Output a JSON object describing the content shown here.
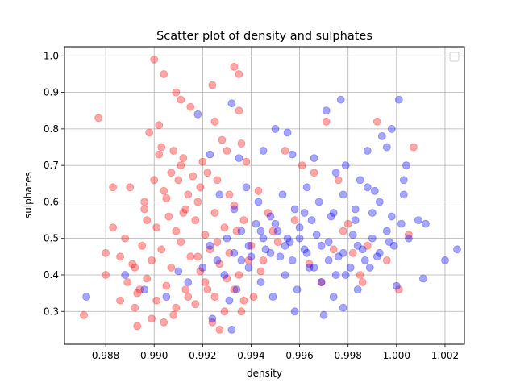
{
  "chart_data": {
    "type": "scatter",
    "title": "Scatter plot of density and sulphates",
    "xlabel": "density",
    "ylabel": "sulphates",
    "xlim": [
      0.9863,
      1.0028
    ],
    "ylim": [
      0.21,
      1.025
    ],
    "x_ticks": [
      "0.988",
      "0.990",
      "0.992",
      "0.994",
      "0.996",
      "0.998",
      "1.000",
      "1.002"
    ],
    "y_ticks": [
      "0.3",
      "0.4",
      "0.5",
      "0.6",
      "0.7",
      "0.8",
      "0.9",
      "1.0"
    ],
    "grid": true,
    "legend": {
      "placement": "top-right",
      "entries": []
    },
    "series": [
      {
        "color": "#ff0000",
        "opacity": 0.35,
        "points": [
          [
            0.9892,
            0.42
          ],
          [
            0.9894,
            0.36
          ],
          [
            0.99,
            0.99
          ],
          [
            0.9904,
            0.95
          ],
          [
            0.9909,
            0.9
          ],
          [
            0.9911,
            0.88
          ],
          [
            0.9915,
            0.86
          ],
          [
            0.9877,
            0.83
          ],
          [
            0.9898,
            0.79
          ],
          [
            0.9902,
            0.81
          ],
          [
            0.9903,
            0.75
          ],
          [
            0.9908,
            0.74
          ],
          [
            0.9912,
            0.72
          ],
          [
            0.9924,
            0.92
          ],
          [
            0.9933,
            0.97
          ],
          [
            0.9935,
            0.95
          ],
          [
            0.9935,
            0.85
          ],
          [
            0.9925,
            0.82
          ],
          [
            0.9928,
            0.77
          ],
          [
            0.9936,
            0.76
          ],
          [
            0.9883,
            0.64
          ],
          [
            0.989,
            0.64
          ],
          [
            0.9896,
            0.6
          ],
          [
            0.99,
            0.66
          ],
          [
            0.9904,
            0.63
          ],
          [
            0.9907,
            0.68
          ],
          [
            0.9911,
            0.7
          ],
          [
            0.9914,
            0.62
          ],
          [
            0.9918,
            0.6
          ],
          [
            0.9922,
            0.68
          ],
          [
            0.9926,
            0.66
          ],
          [
            0.9931,
            0.62
          ],
          [
            0.9897,
            0.55
          ],
          [
            0.9901,
            0.53
          ],
          [
            0.9906,
            0.56
          ],
          [
            0.9909,
            0.52
          ],
          [
            0.9913,
            0.58
          ],
          [
            0.9917,
            0.55
          ],
          [
            0.9921,
            0.51
          ],
          [
            0.9925,
            0.57
          ],
          [
            0.9929,
            0.53
          ],
          [
            0.9933,
            0.59
          ],
          [
            0.9937,
            0.55
          ],
          [
            0.988,
            0.46
          ],
          [
            0.9886,
            0.45
          ],
          [
            0.9891,
            0.43
          ],
          [
            0.9895,
            0.48
          ],
          [
            0.9899,
            0.44
          ],
          [
            0.9903,
            0.47
          ],
          [
            0.9907,
            0.42
          ],
          [
            0.9911,
            0.49
          ],
          [
            0.9915,
            0.45
          ],
          [
            0.9919,
            0.41
          ],
          [
            0.9923,
            0.47
          ],
          [
            0.9927,
            0.43
          ],
          [
            0.9931,
            0.46
          ],
          [
            0.9935,
            0.4
          ],
          [
            0.9939,
            0.44
          ],
          [
            0.9889,
            0.38
          ],
          [
            0.9893,
            0.35
          ],
          [
            0.9897,
            0.39
          ],
          [
            0.9901,
            0.33
          ],
          [
            0.9905,
            0.37
          ],
          [
            0.9909,
            0.31
          ],
          [
            0.9913,
            0.36
          ],
          [
            0.9917,
            0.32
          ],
          [
            0.9921,
            0.38
          ],
          [
            0.9925,
            0.34
          ],
          [
            0.9929,
            0.3
          ],
          [
            0.9933,
            0.36
          ],
          [
            0.9937,
            0.33
          ],
          [
            0.9871,
            0.29
          ],
          [
            0.9893,
            0.26
          ],
          [
            0.9899,
            0.28
          ],
          [
            0.9904,
            0.27
          ],
          [
            0.9924,
            0.27
          ],
          [
            0.9927,
            0.25
          ],
          [
            0.9941,
            0.34
          ],
          [
            0.9945,
            0.44
          ],
          [
            0.9949,
            0.52
          ],
          [
            0.9954,
            0.74
          ],
          [
            0.9961,
            0.7
          ],
          [
            0.9966,
            0.68
          ],
          [
            0.9971,
            0.82
          ],
          [
            0.9976,
            0.66
          ],
          [
            0.9978,
            0.52
          ],
          [
            0.9982,
            0.46
          ],
          [
            0.9985,
            0.4
          ],
          [
            0.9988,
            0.48
          ],
          [
            0.9992,
            0.82
          ],
          [
            0.9996,
            0.44
          ],
          [
            1.0001,
            0.36
          ],
          [
            1.0005,
            0.51
          ],
          [
            1.0007,
            0.75
          ],
          [
            0.9883,
            0.53
          ],
          [
            0.9888,
            0.5
          ],
          [
            0.9896,
            0.58
          ],
          [
            0.9905,
            0.61
          ],
          [
            0.9912,
            0.57
          ],
          [
            0.9919,
            0.64
          ],
          [
            0.9902,
            0.73
          ],
          [
            0.991,
            0.66
          ],
          [
            0.9916,
            0.67
          ],
          [
            0.992,
            0.71
          ],
          [
            0.993,
            0.74
          ],
          [
            0.9938,
            0.71
          ],
          [
            0.9943,
            0.63
          ],
          [
            0.9947,
            0.57
          ],
          [
            0.9951,
            0.49
          ],
          [
            0.9958,
            0.55
          ],
          [
            0.9964,
            0.43
          ],
          [
            0.9969,
            0.38
          ],
          [
            0.9974,
            0.47
          ],
          [
            0.998,
            0.54
          ],
          [
            0.9986,
            0.38
          ],
          [
            0.988,
            0.4
          ],
          [
            0.9886,
            0.33
          ],
          [
            0.9892,
            0.31
          ],
          [
            0.9908,
            0.29
          ],
          [
            0.9914,
            0.34
          ],
          [
            0.9922,
            0.36
          ],
          [
            0.993,
            0.39
          ],
          [
            0.9936,
            0.3
          ],
          [
            0.9918,
            0.45
          ],
          [
            0.9926,
            0.49
          ],
          [
            0.9934,
            0.52
          ],
          [
            0.994,
            0.48
          ],
          [
            0.9944,
            0.41
          ]
        ]
      },
      {
        "color": "#0000ff",
        "opacity": 0.35,
        "points": [
          [
            0.9872,
            0.34
          ],
          [
            0.9888,
            0.4
          ],
          [
            0.9896,
            0.36
          ],
          [
            0.9905,
            0.34
          ],
          [
            0.991,
            0.41
          ],
          [
            0.9914,
            0.38
          ],
          [
            0.992,
            0.42
          ],
          [
            0.9923,
            0.48
          ],
          [
            0.9926,
            0.44
          ],
          [
            0.993,
            0.5
          ],
          [
            0.9933,
            0.46
          ],
          [
            0.9936,
            0.52
          ],
          [
            0.9939,
            0.48
          ],
          [
            0.9942,
            0.54
          ],
          [
            0.9945,
            0.5
          ],
          [
            0.9948,
            0.46
          ],
          [
            0.9951,
            0.52
          ],
          [
            0.9954,
            0.48
          ],
          [
            0.9957,
            0.44
          ],
          [
            0.996,
            0.5
          ],
          [
            0.9963,
            0.46
          ],
          [
            0.9966,
            0.42
          ],
          [
            0.9969,
            0.48
          ],
          [
            0.9972,
            0.44
          ],
          [
            0.9975,
            0.4
          ],
          [
            0.9978,
            0.46
          ],
          [
            0.9981,
            0.42
          ],
          [
            0.9984,
            0.48
          ],
          [
            0.9987,
            0.44
          ],
          [
            0.999,
            0.5
          ],
          [
            0.9993,
            0.46
          ],
          [
            0.9996,
            0.52
          ],
          [
            0.9999,
            0.48
          ],
          [
            1.0002,
            0.54
          ],
          [
            1.0005,
            0.5
          ],
          [
            1.0009,
            0.55
          ],
          [
            1.0012,
            0.54
          ],
          [
            1.002,
            0.44
          ],
          [
            1.0025,
            0.47
          ],
          [
            1.0011,
            0.39
          ],
          [
            1.0001,
            0.88
          ],
          [
            0.9996,
            0.75
          ],
          [
            0.9991,
            0.63
          ],
          [
            0.9998,
            0.8
          ],
          [
            0.9977,
            0.88
          ],
          [
            0.9971,
            0.85
          ],
          [
            0.9955,
            0.79
          ],
          [
            0.995,
            0.8
          ],
          [
            0.9932,
            0.87
          ],
          [
            0.9918,
            0.84
          ],
          [
            0.9923,
            0.73
          ],
          [
            0.9935,
            0.72
          ],
          [
            0.9945,
            0.74
          ],
          [
            0.9957,
            0.73
          ],
          [
            0.9966,
            0.72
          ],
          [
            0.9979,
            0.7
          ],
          [
            0.9988,
            0.74
          ],
          [
            0.9994,
            0.78
          ],
          [
            1.0004,
            0.7
          ],
          [
            1.0003,
            0.66
          ],
          [
            0.9927,
            0.62
          ],
          [
            0.9933,
            0.58
          ],
          [
            0.9938,
            0.64
          ],
          [
            0.9943,
            0.6
          ],
          [
            0.9948,
            0.56
          ],
          [
            0.9953,
            0.62
          ],
          [
            0.9958,
            0.58
          ],
          [
            0.9963,
            0.64
          ],
          [
            0.9968,
            0.6
          ],
          [
            0.9973,
            0.56
          ],
          [
            0.9978,
            0.62
          ],
          [
            0.9983,
            0.58
          ],
          [
            0.9988,
            0.64
          ],
          [
            0.9993,
            0.6
          ],
          [
            0.9998,
            0.56
          ],
          [
            1.0003,
            0.62
          ],
          [
            0.9929,
            0.4
          ],
          [
            0.9934,
            0.36
          ],
          [
            0.9939,
            0.42
          ],
          [
            0.9944,
            0.38
          ],
          [
            0.9949,
            0.34
          ],
          [
            0.9954,
            0.4
          ],
          [
            0.9959,
            0.36
          ],
          [
            0.9964,
            0.42
          ],
          [
            0.9969,
            0.38
          ],
          [
            0.9974,
            0.34
          ],
          [
            0.9979,
            0.4
          ],
          [
            0.9984,
            0.36
          ],
          [
            0.9989,
            0.42
          ],
          [
            1.0,
            0.37
          ],
          [
            0.9958,
            0.3
          ],
          [
            0.997,
            0.29
          ],
          [
            0.9978,
            0.31
          ],
          [
            0.9931,
            0.33
          ],
          [
            0.9924,
            0.28
          ],
          [
            0.9932,
            0.25
          ],
          [
            0.9946,
            0.47
          ],
          [
            0.9952,
            0.45
          ],
          [
            0.9956,
            0.49
          ],
          [
            0.9962,
            0.47
          ],
          [
            0.9967,
            0.51
          ],
          [
            0.9972,
            0.49
          ],
          [
            0.9976,
            0.45
          ],
          [
            0.9982,
            0.51
          ],
          [
            0.9986,
            0.47
          ],
          [
            0.9992,
            0.45
          ],
          [
            0.9997,
            0.49
          ],
          [
            0.9944,
            0.52
          ],
          [
            0.995,
            0.54
          ],
          [
            0.9955,
            0.5
          ],
          [
            0.996,
            0.53
          ],
          [
            0.9965,
            0.55
          ],
          [
            0.994,
            0.45
          ],
          [
            0.9936,
            0.44
          ],
          [
            0.9962,
            0.57
          ],
          [
            0.9974,
            0.57
          ],
          [
            0.9983,
            0.55
          ],
          [
            0.999,
            0.57
          ],
          [
            0.9985,
            0.66
          ],
          [
            0.9975,
            0.68
          ]
        ]
      }
    ]
  }
}
